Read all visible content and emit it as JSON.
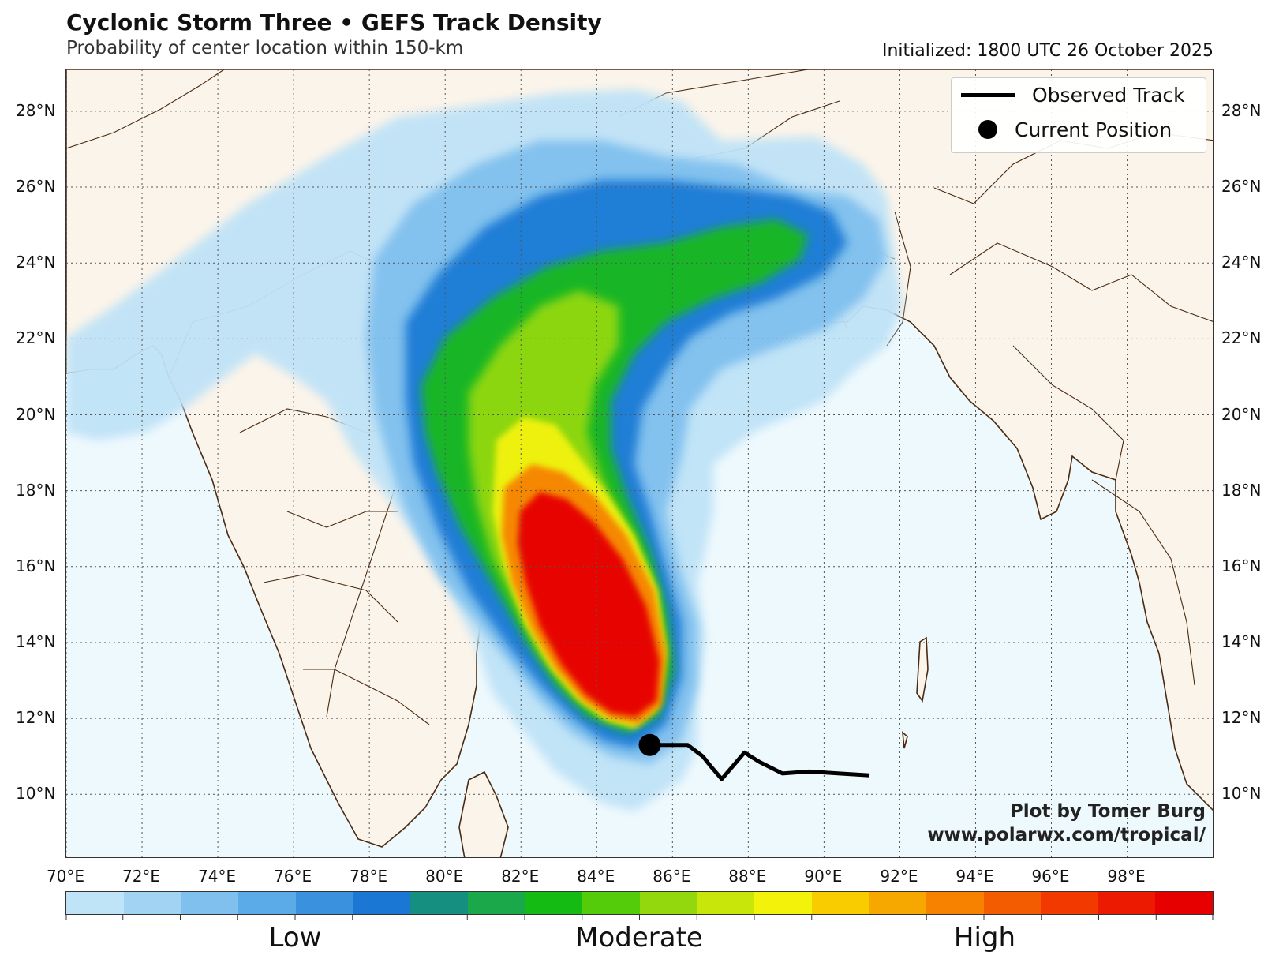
{
  "header": {
    "title": "Cyclonic Storm Three • GEFS Track Density",
    "subtitle": "Probability of center location within 150-km",
    "initialized": "Initialized: 1800 UTC 26 October 2025"
  },
  "map": {
    "lon_range": [
      70,
      100.3
    ],
    "lat_range": [
      8.3,
      29.1
    ],
    "lat_labels": [
      "10°N",
      "12°N",
      "14°N",
      "16°N",
      "18°N",
      "20°N",
      "22°N",
      "24°N",
      "26°N",
      "28°N"
    ],
    "lat_values": [
      10,
      12,
      14,
      16,
      18,
      20,
      22,
      24,
      26,
      28
    ],
    "lon_labels": [
      "70°E",
      "72°E",
      "74°E",
      "76°E",
      "78°E",
      "80°E",
      "82°E",
      "84°E",
      "86°E",
      "88°E",
      "90°E",
      "92°E",
      "94°E",
      "96°E",
      "98°E"
    ],
    "lon_values": [
      70,
      72,
      74,
      76,
      78,
      80,
      82,
      84,
      86,
      88,
      90,
      92,
      94,
      96,
      98
    ],
    "colors": {
      "ocean": "#eef9fd",
      "land": "#fbf4ea",
      "border": "#4a2a10",
      "grid": "#555555"
    }
  },
  "observed_track": [
    [
      91.2,
      10.5
    ],
    [
      90.4,
      10.55
    ],
    [
      89.6,
      10.6
    ],
    [
      88.9,
      10.55
    ],
    [
      88.3,
      10.85
    ],
    [
      87.9,
      11.1
    ],
    [
      87.3,
      10.4
    ],
    [
      87.0,
      10.75
    ],
    [
      86.8,
      11.0
    ],
    [
      86.4,
      11.3
    ],
    [
      85.4,
      11.3
    ]
  ],
  "current_position": [
    85.4,
    11.3
  ],
  "legend": {
    "track_label": "Observed Track",
    "position_label": "Current Position"
  },
  "credit": {
    "line1": "Plot by Tomer Burg",
    "line2": "www.polarwx.com/tropical/"
  },
  "colorbar": {
    "colors": [
      "#bfe3f7",
      "#a2d3f3",
      "#7fc0ee",
      "#5aabe8",
      "#3a91de",
      "#1a78d4",
      "#159080",
      "#1aa84a",
      "#13bb13",
      "#55cc0a",
      "#92d80c",
      "#c8e60a",
      "#f2f20a",
      "#f9cc00",
      "#f7a800",
      "#f78200",
      "#f35c00",
      "#f23a00",
      "#ec1a00",
      "#e60000"
    ],
    "low_label": "Low",
    "moderate_label": "Moderate",
    "high_label": "High"
  }
}
